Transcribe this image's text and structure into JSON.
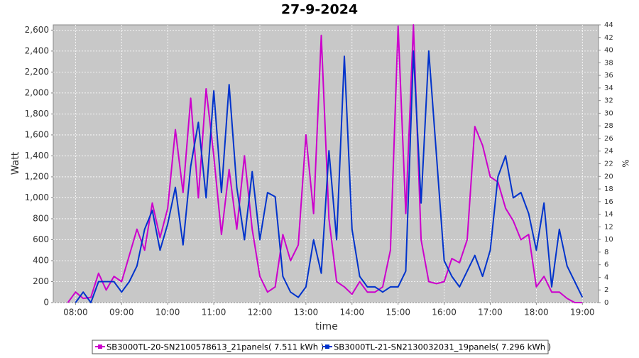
{
  "chart_data": {
    "type": "line",
    "title": "27-9-2024",
    "x_label": "time",
    "y_label": "Watt",
    "y2_label": "%",
    "x": [
      "07:50",
      "08:00",
      "08:10",
      "08:20",
      "08:30",
      "08:40",
      "08:50",
      "09:00",
      "09:10",
      "09:20",
      "09:30",
      "09:40",
      "09:50",
      "10:00",
      "10:10",
      "10:20",
      "10:30",
      "10:40",
      "10:50",
      "11:00",
      "11:10",
      "11:20",
      "11:30",
      "11:40",
      "11:50",
      "12:00",
      "12:10",
      "12:20",
      "12:30",
      "12:40",
      "12:50",
      "13:00",
      "13:10",
      "13:20",
      "13:30",
      "13:40",
      "13:50",
      "14:00",
      "14:10",
      "14:20",
      "14:30",
      "14:40",
      "14:50",
      "15:00",
      "15:10",
      "15:20",
      "15:30",
      "15:40",
      "15:50",
      "16:00",
      "16:10",
      "16:20",
      "16:30",
      "16:40",
      "16:50",
      "17:00",
      "17:10",
      "17:20",
      "17:30",
      "17:40",
      "17:50",
      "18:00",
      "18:10",
      "18:20",
      "18:30",
      "18:40",
      "18:50",
      "19:00"
    ],
    "series": [
      {
        "name": "SB3000TL-20-SN2100578613_21panels( 7.511 kWh )",
        "color": "#cc00cc",
        "values": [
          0,
          100,
          40,
          50,
          280,
          120,
          250,
          200,
          450,
          700,
          500,
          950,
          620,
          900,
          1650,
          1050,
          1950,
          1000,
          2040,
          1400,
          650,
          1270,
          700,
          1400,
          700,
          250,
          100,
          150,
          650,
          400,
          550,
          1600,
          850,
          2550,
          800,
          200,
          150,
          80,
          200,
          100,
          100,
          150,
          500,
          2640,
          850,
          2650,
          600,
          200,
          180,
          200,
          420,
          380,
          600,
          1680,
          1500,
          1200,
          1150,
          900,
          780,
          600,
          650,
          150,
          250,
          100,
          100,
          40,
          0,
          0
        ]
      },
      {
        "name": "SB3000TL-21-SN2130032031_19panels( 7.296 kWh )",
        "color": "#0033cc",
        "values": [
          null,
          0,
          100,
          0,
          200,
          200,
          200,
          100,
          200,
          350,
          700,
          880,
          500,
          750,
          1100,
          550,
          1300,
          1720,
          1000,
          2020,
          1050,
          2080,
          1100,
          600,
          1250,
          600,
          1050,
          1010,
          250,
          100,
          50,
          150,
          600,
          280,
          1450,
          600,
          2350,
          700,
          250,
          150,
          150,
          100,
          150,
          150,
          300,
          2400,
          950,
          2400,
          1400,
          400,
          250,
          150,
          300,
          450,
          250,
          500,
          1200,
          1400,
          1000,
          1050,
          850,
          500,
          950,
          150,
          700,
          350,
          200,
          50
        ]
      }
    ],
    "xlim": [
      "07:31",
      "19:21"
    ],
    "xticks": [
      "08:00",
      "09:00",
      "10:00",
      "11:00",
      "12:00",
      "13:00",
      "14:00",
      "15:00",
      "16:00",
      "17:00",
      "18:00",
      "19:00"
    ],
    "ylim": [
      0,
      2650
    ],
    "yticks": [
      0,
      200,
      400,
      600,
      800,
      {
        "value": 1000,
        "label": "1,000"
      },
      {
        "value": 1200,
        "label": "1,200"
      },
      {
        "value": 1400,
        "label": "1,400"
      },
      {
        "value": 1600,
        "label": "1,600"
      },
      {
        "value": 1800,
        "label": "1,800"
      },
      {
        "value": 2000,
        "label": "2,000"
      },
      {
        "value": 2200,
        "label": "2,200"
      },
      {
        "value": 2400,
        "label": "2,400"
      },
      {
        "value": 2600,
        "label": "2,600"
      }
    ],
    "y2lim": [
      0,
      44
    ],
    "y2ticks": [
      0,
      2,
      4,
      6,
      8,
      10,
      12,
      14,
      16,
      18,
      20,
      22,
      24,
      26,
      28,
      30,
      32,
      34,
      36,
      38,
      40,
      42,
      44
    ],
    "grid": true,
    "legend": "bottom"
  }
}
